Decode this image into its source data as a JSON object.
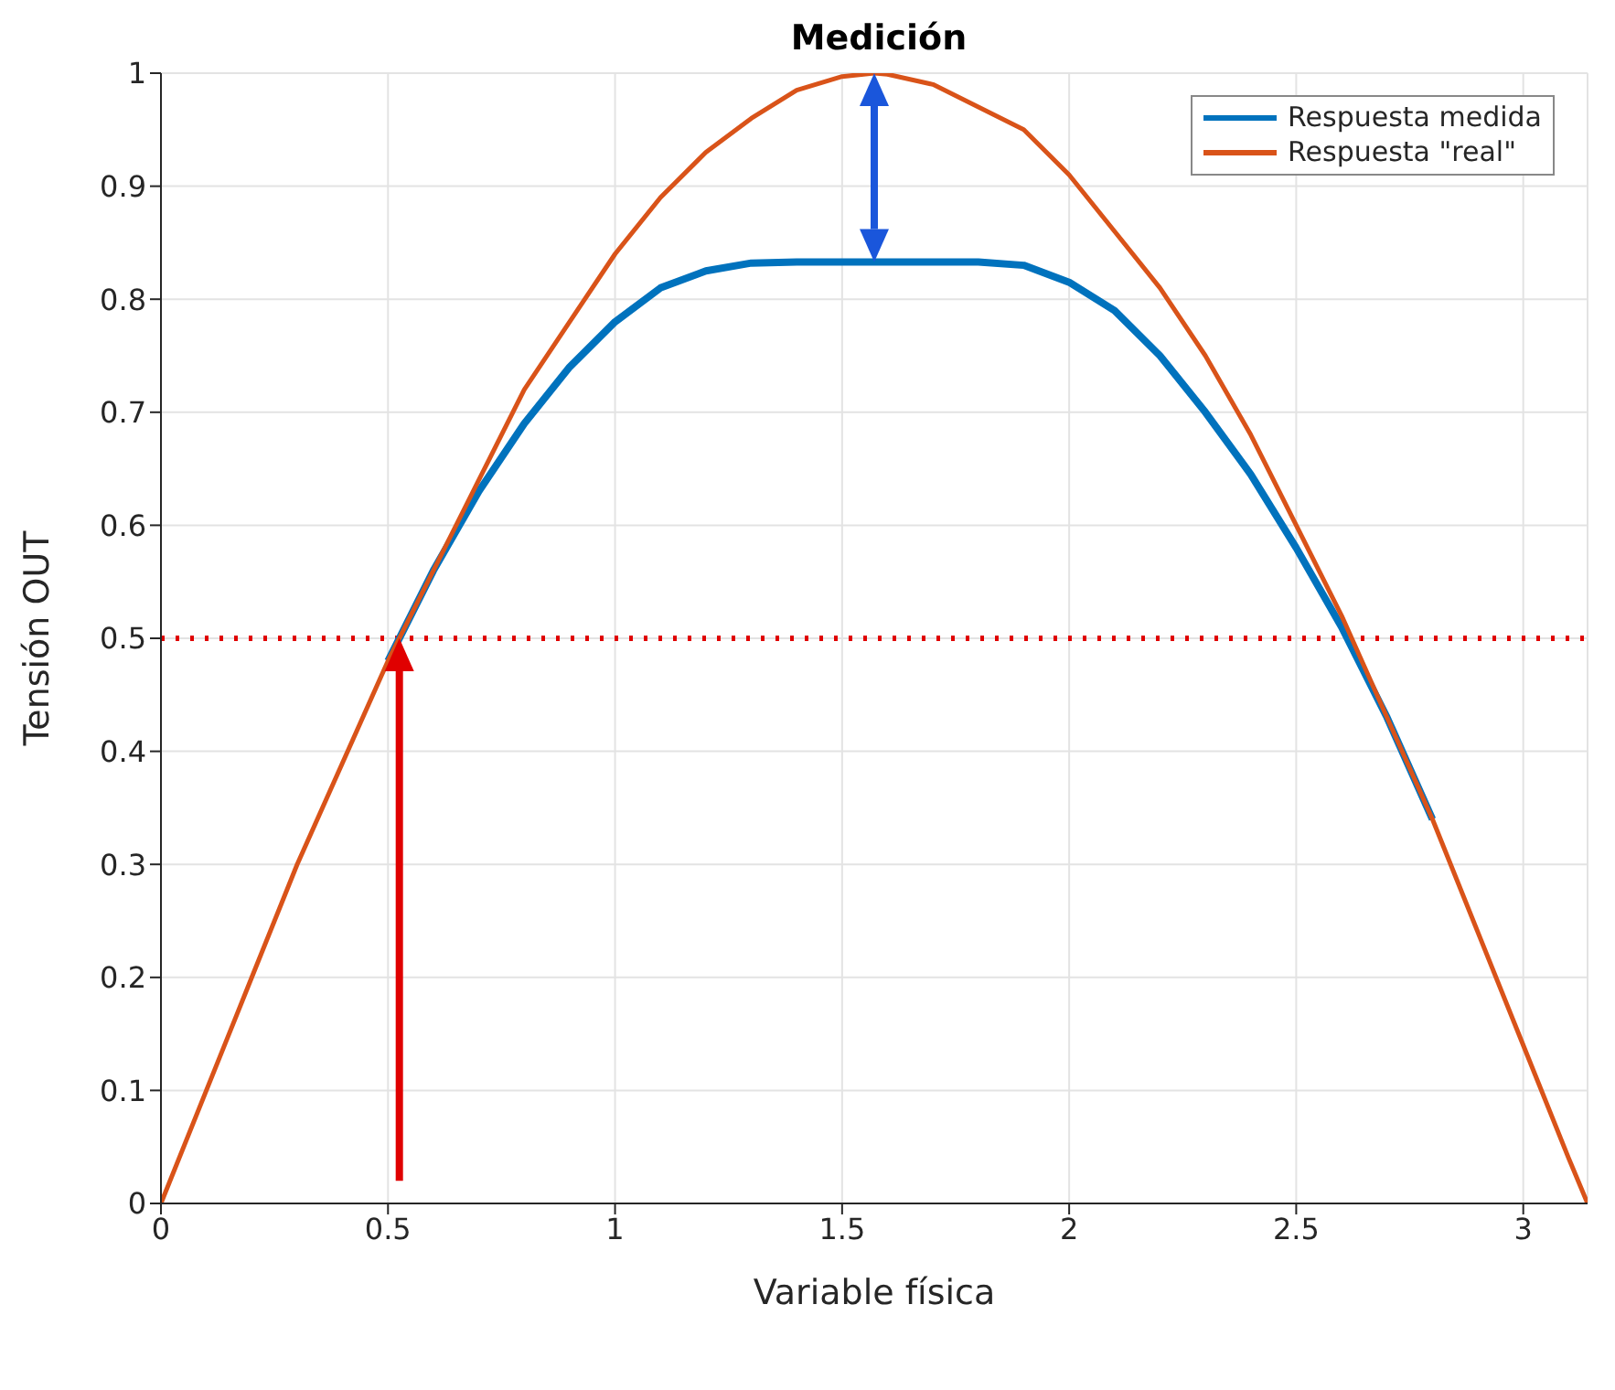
{
  "chart_data": {
    "type": "line",
    "title": "Medición",
    "xlabel": "Variable física",
    "ylabel": "Tensión OUT",
    "xlim": [
      0,
      3.1416
    ],
    "xticks": [
      0,
      0.5,
      1,
      1.5,
      2,
      2.5,
      3
    ],
    "ylim": [
      0,
      1
    ],
    "yticks": [
      0,
      0.1,
      0.2,
      0.3,
      0.4,
      0.5,
      0.6,
      0.7,
      0.8,
      0.9,
      1
    ],
    "grid": true,
    "legend": "top right",
    "marker": "none",
    "line_style": "solid",
    "ref_lines": [
      {
        "axis": "y",
        "value": 0.5,
        "color": "#e00000",
        "line_style": "dotted"
      }
    ],
    "series": [
      {
        "name": "Respuesta medida",
        "color": "#0072bd",
        "x": [
          0.5,
          0.6,
          0.7,
          0.8,
          0.9,
          1.0,
          1.1,
          1.2,
          1.3,
          1.4,
          1.5,
          1.6,
          1.7,
          1.8,
          1.9,
          2.0,
          2.1,
          2.2,
          2.3,
          2.4,
          2.5,
          2.6,
          2.7,
          2.8
        ],
        "values": [
          0.48,
          0.56,
          0.63,
          0.69,
          0.74,
          0.78,
          0.81,
          0.825,
          0.832,
          0.833,
          0.833,
          0.833,
          0.833,
          0.833,
          0.83,
          0.815,
          0.79,
          0.75,
          0.7,
          0.645,
          0.58,
          0.51,
          0.43,
          0.34
        ]
      },
      {
        "name": "Respuesta \"real\"",
        "color": "#d95319",
        "x": [
          0,
          0.1,
          0.2,
          0.3,
          0.4,
          0.5,
          0.6,
          0.7,
          0.8,
          0.9,
          1.0,
          1.1,
          1.2,
          1.3,
          1.4,
          1.5,
          1.5708,
          1.6,
          1.7,
          1.8,
          1.9,
          2.0,
          2.1,
          2.2,
          2.3,
          2.4,
          2.5,
          2.6,
          2.7,
          2.8,
          2.9,
          3.0,
          3.1,
          3.1416
        ],
        "values": [
          0,
          0.1,
          0.2,
          0.3,
          0.39,
          0.48,
          0.56,
          0.64,
          0.72,
          0.78,
          0.84,
          0.89,
          0.93,
          0.96,
          0.985,
          0.997,
          1,
          0.999,
          0.99,
          0.97,
          0.95,
          0.91,
          0.86,
          0.81,
          0.75,
          0.68,
          0.6,
          0.52,
          0.43,
          0.34,
          0.24,
          0.14,
          0.04,
          0
        ]
      }
    ]
  }
}
